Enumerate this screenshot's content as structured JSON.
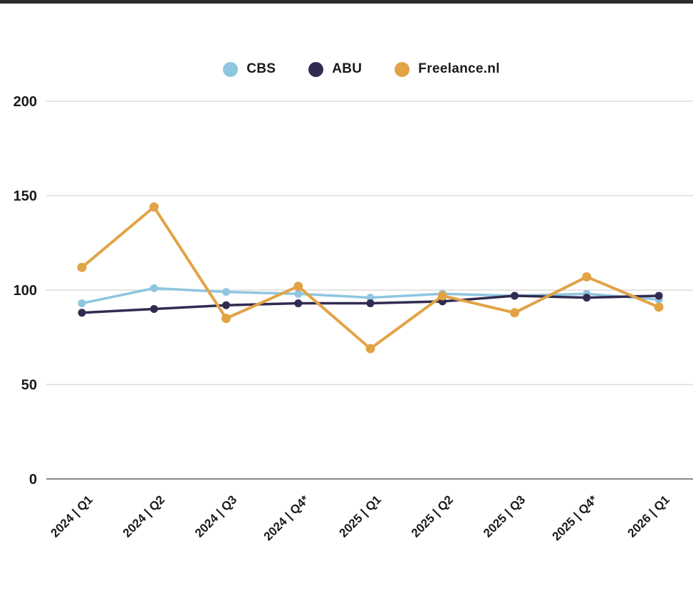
{
  "page": {
    "background_color": "#ffffff",
    "top_bar_color": "#2b2b2b"
  },
  "legend": {
    "items": [
      {
        "label": "CBS",
        "color": "#8EC6E0"
      },
      {
        "label": "ABU",
        "color": "#322B51"
      },
      {
        "label": "Freelance.nl",
        "color": "#E2A346"
      }
    ]
  },
  "chart_data": {
    "type": "line",
    "title": "",
    "xlabel": "",
    "ylabel": "",
    "categories": [
      "2024 | Q1",
      "2024 | Q2",
      "2024 | Q3",
      "2024 | Q4*",
      "2025 | Q1",
      "2025 | Q2",
      "2025 | Q3",
      "2025 | Q4*",
      "2026 | Q1"
    ],
    "series": [
      {
        "name": "CBS",
        "color": "#8EC6E0",
        "values": [
          93,
          101,
          99,
          98,
          96,
          98,
          97,
          98,
          95
        ]
      },
      {
        "name": "ABU",
        "color": "#322B51",
        "values": [
          88,
          90,
          92,
          93,
          93,
          94,
          97,
          96,
          97
        ]
      },
      {
        "name": "Freelance.nl",
        "color": "#E2A346",
        "values": [
          112,
          144,
          85,
          102,
          69,
          97,
          88,
          107,
          91
        ]
      }
    ],
    "y_ticks": [
      0,
      50,
      100,
      150,
      200
    ],
    "ylim": [
      0,
      200
    ],
    "grid": true,
    "legend_position": "top",
    "x_label_rotation": -45,
    "grid_color": "#dcdcdc",
    "axis_line_color": "#8a8a8a",
    "tick_text_color": "#1a1a1a"
  }
}
